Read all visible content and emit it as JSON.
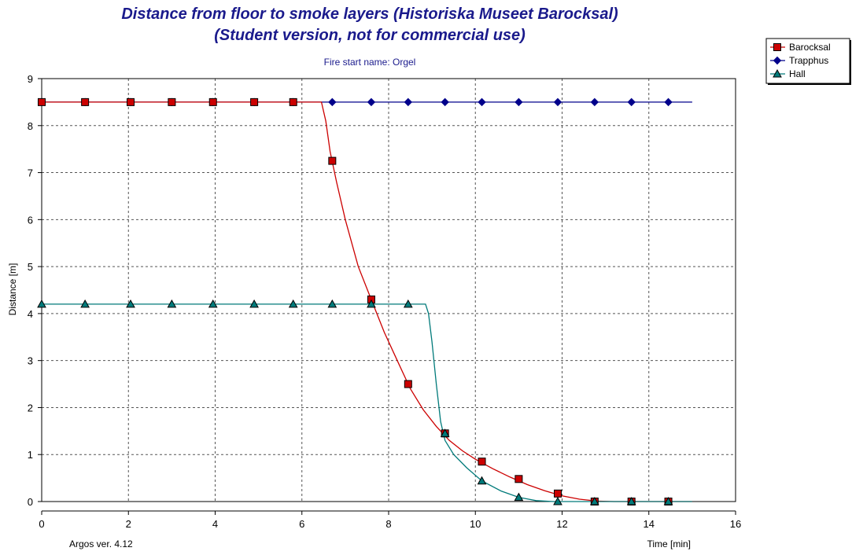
{
  "chart_data": {
    "type": "line",
    "title": "Distance from floor to smoke layers   (Historiska Museet Barocksal)",
    "subtitle": "(Student version, not for commercial use)",
    "annotation": "Fire start name:  Orgel",
    "footer": "Argos ver. 4.12",
    "xlabel": "Time [min]",
    "ylabel": "Distance [m]",
    "xlim": [
      0,
      16
    ],
    "ylim": [
      0,
      9
    ],
    "x_ticks": [
      "0",
      "2",
      "4",
      "6",
      "8",
      "10",
      "12",
      "14",
      "16"
    ],
    "y_ticks": [
      "0",
      "1",
      "2",
      "3",
      "4",
      "5",
      "6",
      "7",
      "8",
      "9"
    ],
    "grid": true,
    "legend_position": "top-right",
    "series": [
      {
        "name": "Barocksal",
        "color": "#cc0000",
        "marker": "square",
        "curve": [
          [
            0,
            8.5
          ],
          [
            6.45,
            8.5
          ],
          [
            6.55,
            8.1
          ],
          [
            6.65,
            7.45
          ],
          [
            6.8,
            6.8
          ],
          [
            7.0,
            6.0
          ],
          [
            7.3,
            5.0
          ],
          [
            7.6,
            4.3
          ],
          [
            7.9,
            3.6
          ],
          [
            8.2,
            3.0
          ],
          [
            8.5,
            2.4
          ],
          [
            8.8,
            1.95
          ],
          [
            9.1,
            1.6
          ],
          [
            9.4,
            1.3
          ],
          [
            9.7,
            1.08
          ],
          [
            10.0,
            0.9
          ],
          [
            10.4,
            0.7
          ],
          [
            10.8,
            0.52
          ],
          [
            11.2,
            0.36
          ],
          [
            11.6,
            0.23
          ],
          [
            12.0,
            0.12
          ],
          [
            12.4,
            0.05
          ],
          [
            12.8,
            0.01
          ],
          [
            13.2,
            0
          ],
          [
            15.0,
            0
          ]
        ],
        "points": [
          [
            0,
            8.5
          ],
          [
            1,
            8.5
          ],
          [
            2.05,
            8.5
          ],
          [
            3,
            8.5
          ],
          [
            3.95,
            8.5
          ],
          [
            4.9,
            8.5
          ],
          [
            5.8,
            8.5
          ],
          [
            6.7,
            7.25
          ],
          [
            7.6,
            4.3
          ],
          [
            8.45,
            2.5
          ],
          [
            9.3,
            1.45
          ],
          [
            10.15,
            0.85
          ],
          [
            11.0,
            0.48
          ],
          [
            11.9,
            0.17
          ],
          [
            12.75,
            0
          ],
          [
            13.6,
            0
          ],
          [
            14.45,
            0
          ]
        ]
      },
      {
        "name": "Trapphus",
        "color": "#00008b",
        "marker": "diamond",
        "curve": [
          [
            0,
            8.5
          ],
          [
            15.0,
            8.5
          ]
        ],
        "points": [
          [
            0,
            8.5
          ],
          [
            1,
            8.5
          ],
          [
            2.05,
            8.5
          ],
          [
            3,
            8.5
          ],
          [
            3.95,
            8.5
          ],
          [
            4.9,
            8.5
          ],
          [
            5.8,
            8.5
          ],
          [
            6.7,
            8.5
          ],
          [
            7.6,
            8.5
          ],
          [
            8.45,
            8.5
          ],
          [
            9.3,
            8.5
          ],
          [
            10.15,
            8.5
          ],
          [
            11.0,
            8.5
          ],
          [
            11.9,
            8.5
          ],
          [
            12.75,
            8.5
          ],
          [
            13.6,
            8.5
          ],
          [
            14.45,
            8.5
          ]
        ]
      },
      {
        "name": "Hall",
        "color": "#007a7a",
        "marker": "triangle",
        "curve": [
          [
            0,
            4.2
          ],
          [
            8.85,
            4.2
          ],
          [
            8.92,
            4.0
          ],
          [
            9.0,
            3.4
          ],
          [
            9.1,
            2.5
          ],
          [
            9.2,
            1.7
          ],
          [
            9.3,
            1.3
          ],
          [
            9.5,
            1.0
          ],
          [
            9.8,
            0.72
          ],
          [
            10.15,
            0.44
          ],
          [
            10.6,
            0.22
          ],
          [
            11.0,
            0.09
          ],
          [
            11.4,
            0.02
          ],
          [
            11.8,
            0
          ],
          [
            15.0,
            0
          ]
        ],
        "points": [
          [
            0,
            4.2
          ],
          [
            1,
            4.2
          ],
          [
            2.05,
            4.2
          ],
          [
            3,
            4.2
          ],
          [
            3.95,
            4.2
          ],
          [
            4.9,
            4.2
          ],
          [
            5.8,
            4.2
          ],
          [
            6.7,
            4.2
          ],
          [
            7.6,
            4.2
          ],
          [
            8.45,
            4.2
          ],
          [
            9.3,
            1.45
          ],
          [
            10.15,
            0.44
          ],
          [
            11.0,
            0.09
          ],
          [
            11.9,
            0
          ],
          [
            12.75,
            0
          ],
          [
            13.6,
            0
          ],
          [
            14.45,
            0
          ]
        ]
      }
    ]
  }
}
